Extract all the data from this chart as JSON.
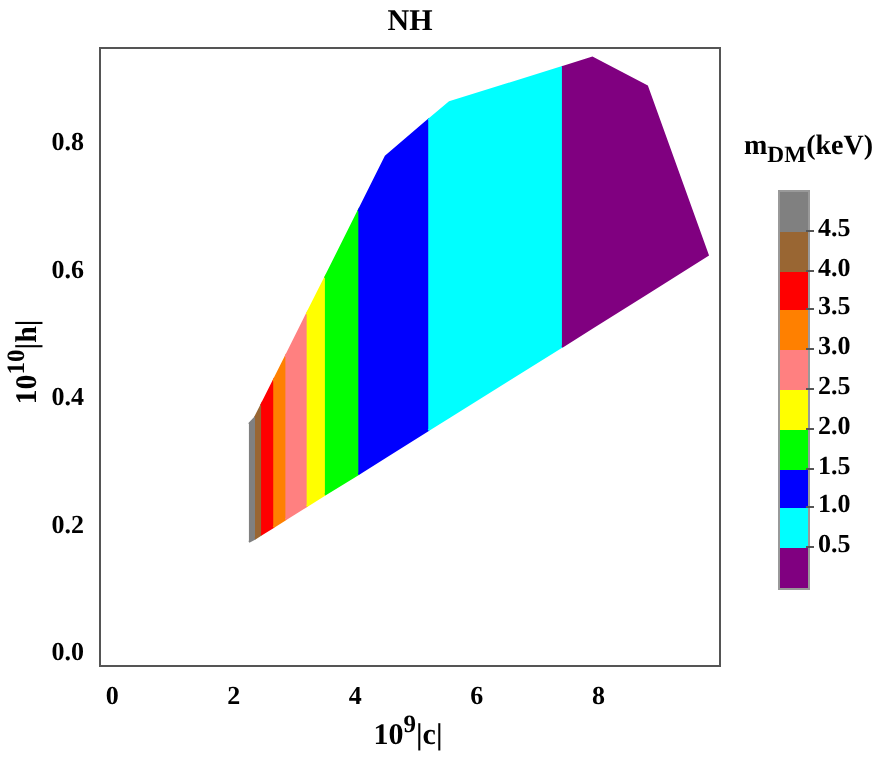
{
  "chart_data": {
    "type": "area",
    "title": "NH",
    "xlabel": "10$^{9}$|c|",
    "ylabel": "10$^{10}$|h|",
    "clabel": "m$_{DM}$(keV)",
    "xlim": [
      -0.2,
      10
    ],
    "xticks": [
      0,
      2,
      4,
      6,
      8
    ],
    "ylim": [
      -0.02,
      0.95
    ],
    "yticks": [
      {
        "value": 0,
        "label": "0.0"
      },
      {
        "value": 0.2,
        "label": "0.2"
      },
      {
        "value": 0.4,
        "label": "0.4"
      },
      {
        "value": 0.6,
        "label": "0.6"
      },
      {
        "value": 0.8,
        "label": "0.8"
      }
    ],
    "clim": [
      0,
      5
    ],
    "cticks": [
      0.5,
      {
        "value": 1,
        "label": "1.0"
      },
      1.5,
      {
        "value": 2,
        "label": "2.0"
      },
      2.5,
      {
        "value": 3,
        "label": "3.0"
      },
      3.5,
      {
        "value": 4,
        "label": "4.0"
      },
      4.5
    ],
    "grid": false,
    "legend": false,
    "series": [
      {
        "color": "#800080",
        "x": [
          7.4,
          7.9,
          8.8,
          9.8,
          8.8,
          7.9,
          7.4
        ],
        "values": [
          0.92,
          0.935,
          0.89,
          0.625,
          0.565,
          0.511,
          0.481
        ]
      },
      {
        "color": "#00ffff",
        "x": [
          5.2,
          5.55,
          7.4,
          7.4,
          5.55,
          5.2
        ],
        "values": [
          0.837,
          0.865,
          0.92,
          0.481,
          0.371,
          0.35
        ]
      },
      {
        "color": "#0000ff",
        "x": [
          4.05,
          4.5,
          5.2,
          5.2,
          4.5,
          4.05
        ],
        "values": [
          0.694,
          0.78,
          0.837,
          0.35,
          0.308,
          0.281
        ]
      },
      {
        "color": "#00ff00",
        "x": [
          3.5,
          4.05,
          4.05,
          3.5
        ],
        "values": [
          0.589,
          0.694,
          0.281,
          0.249
        ]
      },
      {
        "color": "#ffff00",
        "x": [
          3.2,
          3.5,
          3.5,
          3.2
        ],
        "values": [
          0.532,
          0.589,
          0.249,
          0.231
        ]
      },
      {
        "color": "#ff8080",
        "x": [
          2.85,
          3.2,
          3.2,
          2.85
        ],
        "values": [
          0.465,
          0.532,
          0.231,
          0.21
        ]
      },
      {
        "color": "#ff8000",
        "x": [
          2.65,
          2.85,
          2.85,
          2.65
        ],
        "values": [
          0.427,
          0.465,
          0.21,
          0.198
        ]
      },
      {
        "color": "#ff0000",
        "x": [
          2.45,
          2.65,
          2.65,
          2.45
        ],
        "values": [
          0.389,
          0.427,
          0.198,
          0.186
        ]
      },
      {
        "color": "#996633",
        "x": [
          2.35,
          2.45,
          2.45,
          2.35
        ],
        "values": [
          0.37,
          0.389,
          0.186,
          0.18
        ]
      },
      {
        "color": "#808080",
        "x": [
          2.25,
          2.35,
          2.35,
          2.25
        ],
        "values": [
          0.36,
          0.37,
          0.18,
          0.175
        ]
      }
    ]
  }
}
